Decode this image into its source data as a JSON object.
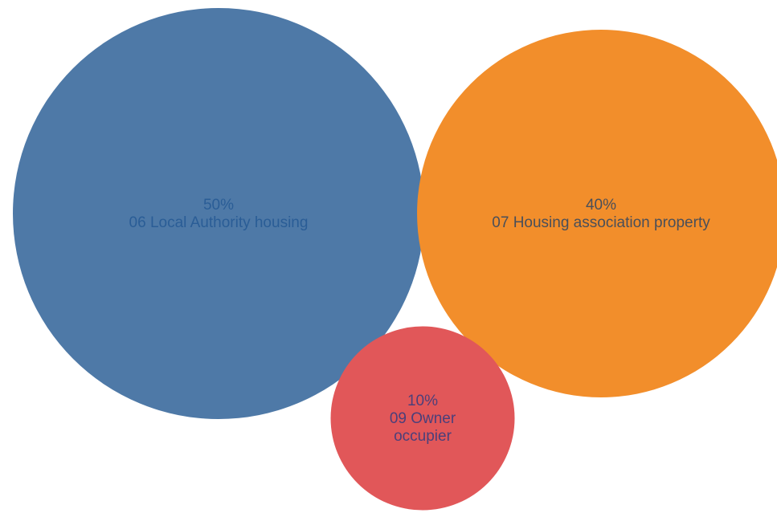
{
  "chart_data": {
    "type": "bubble",
    "unit": "%",
    "bubbles": [
      {
        "label": "06 Local Authority housing",
        "value": 50,
        "value_text": "50%",
        "color": "#4e79a7",
        "text_color": "#2a5d96",
        "label_lines": [
          "50%",
          "06 Local Authority housing"
        ]
      },
      {
        "label": "07 Housing association property",
        "value": 40,
        "value_text": "40%",
        "color": "#f28e2b",
        "text_color": "#4a4f59",
        "label_lines": [
          "40%",
          "07 Housing association property"
        ]
      },
      {
        "label": "09 Owner occupier",
        "value": 10,
        "value_text": "10%",
        "color": "#e15759",
        "text_color": "#4b3f7a",
        "label_lines": [
          "10%",
          "09 Owner",
          "occupier"
        ]
      }
    ]
  }
}
